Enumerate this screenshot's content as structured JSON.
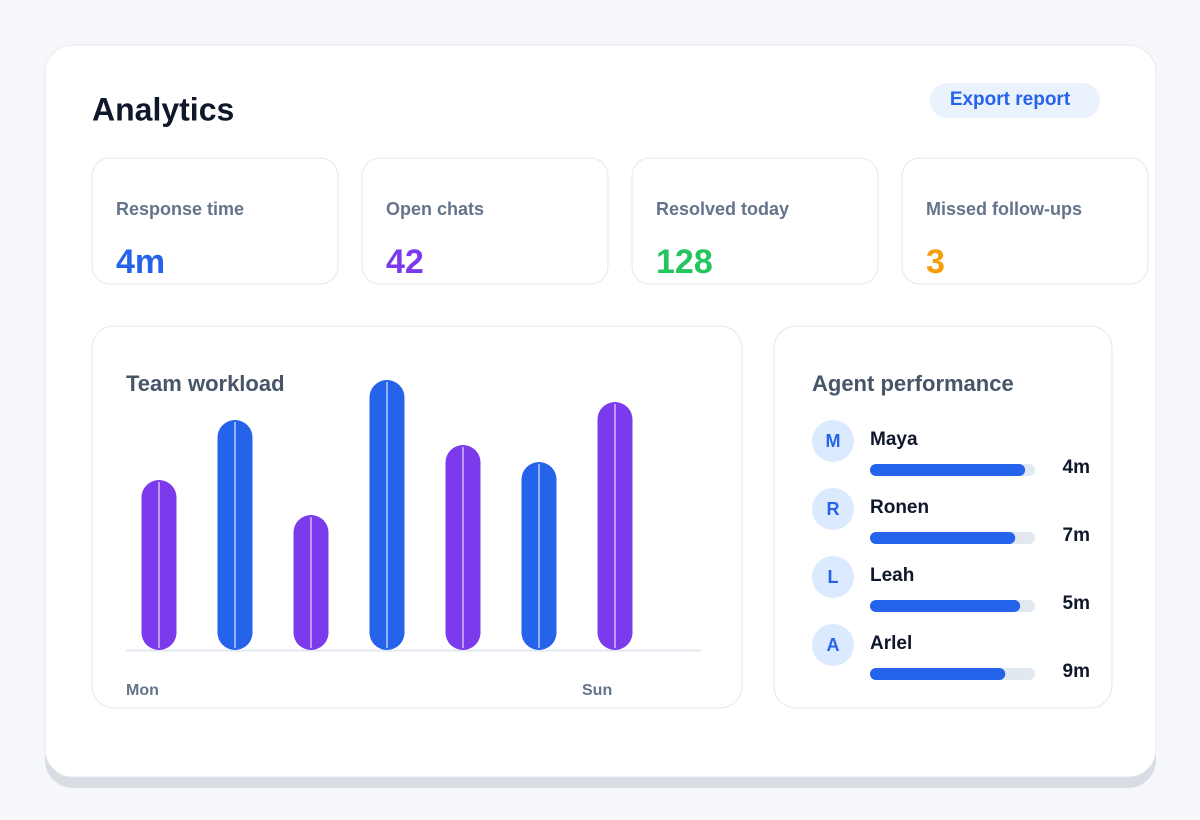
{
  "header": {
    "title": "Analytics",
    "action": "Export report"
  },
  "stats": [
    {
      "label": "Response time",
      "value": "4m",
      "color": "#2563eb"
    },
    {
      "label": "Open chats",
      "value": "42",
      "color": "#7c3aed"
    },
    {
      "label": "Resolved today",
      "value": "128",
      "color": "#22c55e"
    },
    {
      "label": "Missed follow-ups",
      "value": "3",
      "color": "#f59e0b"
    }
  ],
  "chart_data": {
    "type": "bar",
    "title": "Team workload",
    "categories": [
      "Mon",
      null,
      null,
      null,
      null,
      null,
      "Sun"
    ],
    "values": [
      170,
      230,
      135,
      270,
      205,
      188,
      248
    ],
    "colors": [
      "#7c3aed",
      "#2563eb",
      "#7c3aed",
      "#2563eb",
      "#7c3aed",
      "#2563eb",
      "#7c3aed"
    ],
    "ylim": [
      0,
      280
    ]
  },
  "agents": {
    "title": "Agent performance",
    "color": "#2563eb",
    "items": [
      {
        "initial": "M",
        "name": "Maya",
        "time": "4m",
        "progress": 0.94
      },
      {
        "initial": "R",
        "name": "Ronen",
        "time": "7m",
        "progress": 0.88
      },
      {
        "initial": "L",
        "name": "Leah",
        "time": "5m",
        "progress": 0.91
      },
      {
        "initial": "A",
        "name": "Arlel",
        "time": "9m",
        "progress": 0.82
      }
    ]
  }
}
